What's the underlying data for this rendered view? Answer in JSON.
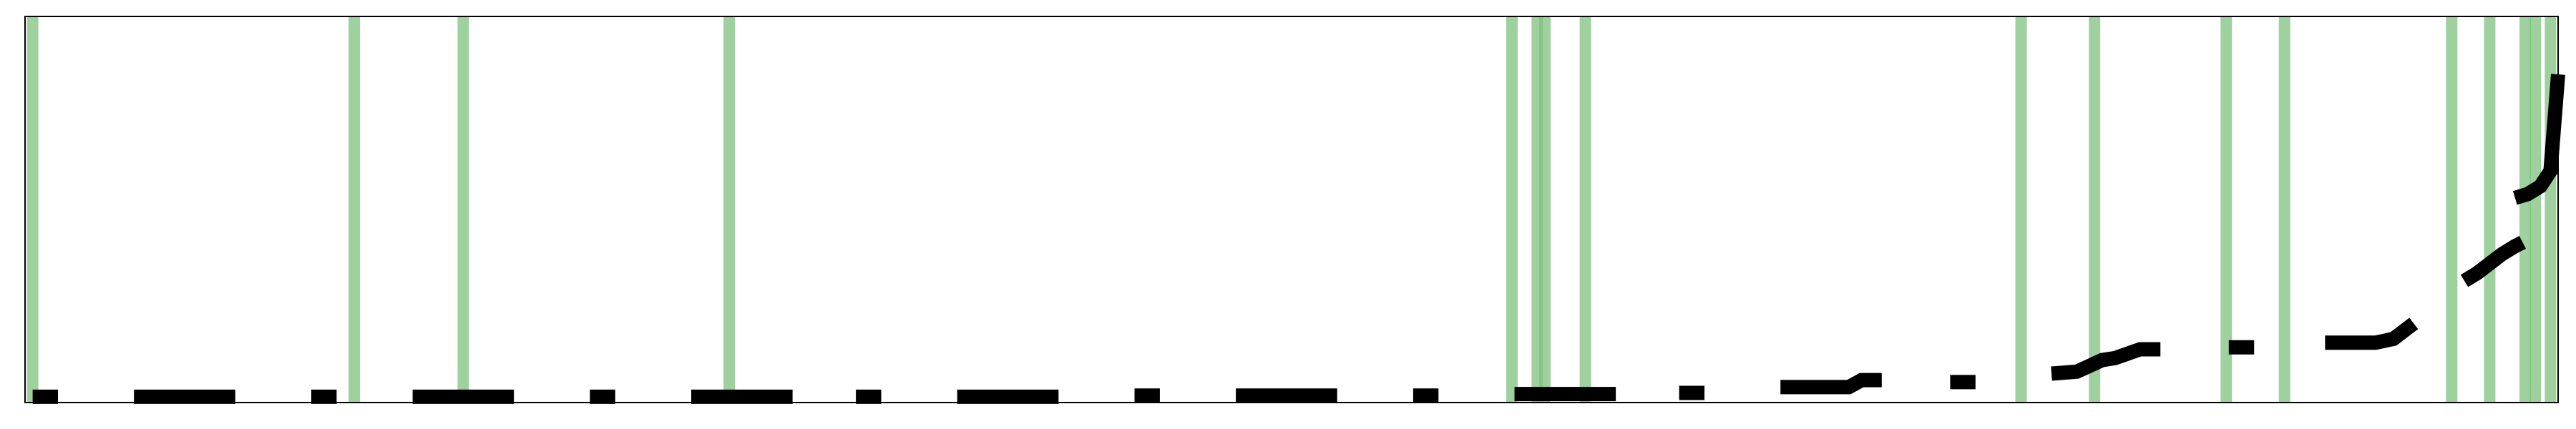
{
  "chart_data": {
    "type": "line",
    "title": "",
    "xlabel": "",
    "ylabel": "",
    "xlim": [
      0,
      100
    ],
    "ylim": [
      0,
      100
    ],
    "grid": false,
    "legend": "none",
    "colors": {
      "series": "#000000",
      "vlines": "#7fc27f",
      "frame": "#000000",
      "background": "#ffffff"
    },
    "vlines": [
      0.3,
      13.0,
      17.3,
      27.8,
      58.7,
      59.7,
      60.0,
      61.6,
      78.8,
      81.7,
      86.9,
      89.2,
      95.8,
      97.3,
      98.7,
      99.1,
      99.7
    ],
    "series": [
      {
        "segments": [
          [
            [
              0.3,
              1.5
            ],
            [
              1.3,
              1.5
            ]
          ],
          [
            [
              4.3,
              1.5
            ],
            [
              8.3,
              1.5
            ]
          ],
          [
            [
              11.3,
              1.5
            ],
            [
              12.3,
              1.5
            ]
          ],
          [
            [
              15.3,
              1.5
            ],
            [
              19.3,
              1.5
            ]
          ],
          [
            [
              22.3,
              1.5
            ],
            [
              23.3,
              1.5
            ]
          ],
          [
            [
              26.3,
              1.5
            ],
            [
              30.3,
              1.5
            ]
          ],
          [
            [
              32.8,
              1.5
            ],
            [
              33.8,
              1.5
            ]
          ],
          [
            [
              36.8,
              1.5
            ],
            [
              40.8,
              1.5
            ]
          ],
          [
            [
              43.8,
              1.8
            ],
            [
              44.8,
              1.8
            ]
          ],
          [
            [
              47.8,
              1.8
            ],
            [
              51.8,
              1.8
            ]
          ],
          [
            [
              54.8,
              1.8
            ],
            [
              55.8,
              1.8
            ]
          ],
          [
            [
              58.8,
              2.2
            ],
            [
              62.8,
              2.2
            ]
          ],
          [
            [
              65.3,
              2.5
            ],
            [
              66.3,
              2.5
            ]
          ],
          [
            [
              69.3,
              4.0
            ],
            [
              72.0,
              4.0
            ],
            [
              72.5,
              5.8
            ],
            [
              73.3,
              5.8
            ]
          ],
          [
            [
              76.0,
              5.3
            ],
            [
              77.0,
              5.3
            ]
          ],
          [
            [
              80.0,
              7.5
            ],
            [
              81.0,
              8.0
            ],
            [
              82.0,
              11.0
            ],
            [
              82.5,
              11.5
            ],
            [
              83.5,
              13.8
            ],
            [
              84.3,
              13.8
            ]
          ],
          [
            [
              87.0,
              14.3
            ],
            [
              88.0,
              14.3
            ]
          ],
          [
            [
              90.8,
              15.5
            ],
            [
              92.8,
              15.5
            ],
            [
              93.5,
              16.5
            ],
            [
              94.3,
              20.5
            ]
          ],
          [
            [
              96.3,
              31.5
            ],
            [
              96.8,
              33.5
            ],
            [
              97.3,
              36.0
            ],
            [
              97.8,
              38.5
            ],
            [
              98.3,
              40.5
            ],
            [
              98.6,
              41.5
            ]
          ],
          [
            [
              98.3,
              53.0
            ],
            [
              98.8,
              54.0
            ],
            [
              99.3,
              56.0
            ],
            [
              99.7,
              60.0
            ],
            [
              100.0,
              85.0
            ]
          ]
        ]
      }
    ]
  }
}
